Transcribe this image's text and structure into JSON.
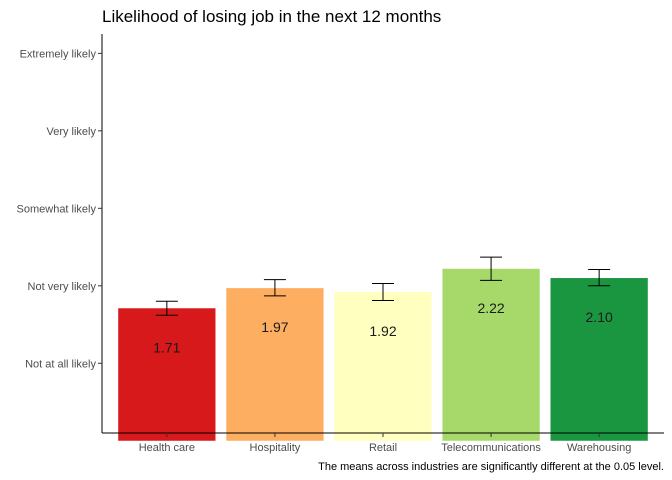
{
  "chart_data": {
    "type": "bar",
    "title": "Likelihood of losing job in the next 12 months",
    "caption": "The means across industries are significantly different at the 0.05 level.",
    "xlabel": "",
    "ylabel": "",
    "categories": [
      "Health care",
      "Hospitality",
      "Retail",
      "Telecommunications",
      "Warehousing"
    ],
    "values": [
      1.71,
      1.97,
      1.92,
      2.22,
      2.1
    ],
    "value_labels": [
      "1.71",
      "1.97",
      "1.92",
      "2.22",
      "2.10"
    ],
    "error_low": [
      1.62,
      1.87,
      1.81,
      2.07,
      2.0
    ],
    "error_high": [
      1.8,
      2.08,
      2.03,
      2.37,
      2.21
    ],
    "colors": [
      "#d7191c",
      "#fdae61",
      "#ffffbf",
      "#a6d96a",
      "#1a9641"
    ],
    "y_ticks": [
      1,
      2,
      3,
      4,
      5
    ],
    "y_tick_labels": [
      "Not at all likely",
      "Not very likely",
      "Somewhat likely",
      "Very likely",
      "Extremely likely"
    ],
    "ylim": [
      0.1,
      5.25
    ],
    "bar_base": 0,
    "grid": false,
    "legend": "none"
  }
}
